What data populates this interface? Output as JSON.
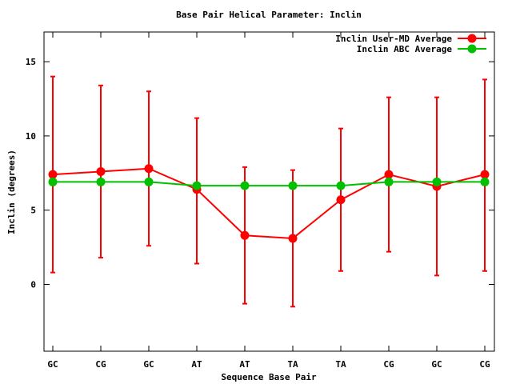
{
  "chart_data": {
    "type": "line",
    "title": "Base Pair Helical Parameter: Inclin",
    "xlabel": "Sequence Base Pair",
    "ylabel": "Inclin (degrees)",
    "categories": [
      "GC",
      "CG",
      "GC",
      "AT",
      "AT",
      "TA",
      "TA",
      "CG",
      "GC",
      "CG"
    ],
    "ylim": [
      -4.5,
      17
    ],
    "yticks": [
      0,
      5,
      10,
      15
    ],
    "grid": false,
    "legend_position": "top-right",
    "series": [
      {
        "name": "Inclin User-MD Average",
        "color": "#ff0000",
        "values": [
          7.4,
          7.6,
          7.8,
          6.4,
          3.3,
          3.1,
          5.7,
          7.4,
          6.6,
          7.4
        ],
        "err_low": [
          0.8,
          1.8,
          2.6,
          1.4,
          -1.3,
          -1.5,
          0.9,
          2.2,
          0.6,
          0.9
        ],
        "err_high": [
          14.0,
          13.4,
          13.0,
          11.2,
          7.9,
          7.7,
          10.5,
          12.6,
          12.6,
          13.8
        ]
      },
      {
        "name": "Inclin ABC Average",
        "color": "#00c000",
        "values": [
          6.9,
          6.9,
          6.9,
          6.65,
          6.65,
          6.65,
          6.65,
          6.9,
          6.9,
          6.9
        ]
      }
    ]
  }
}
